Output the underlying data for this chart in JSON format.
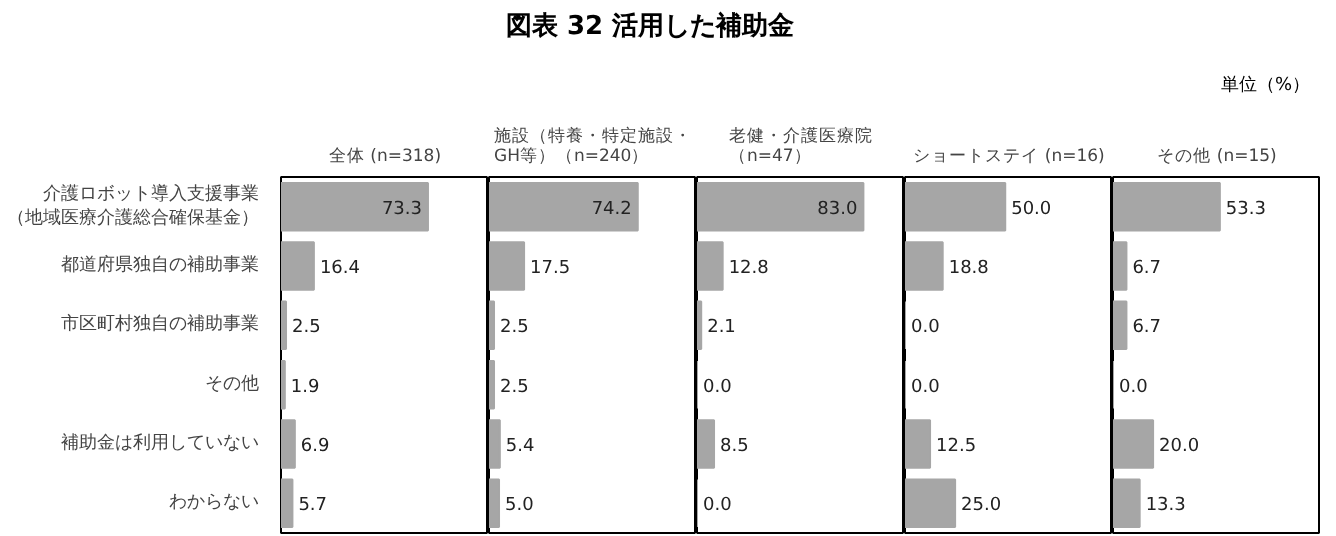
{
  "chart_data": [
    {
      "type": "bar",
      "orientation": "horizontal",
      "title": "全体 (n=318)",
      "annotations": [
        "図表 32 活用した補助金",
        "単位（%）"
      ],
      "categories": [
        "介護ロボット導入支援事業（地域医療介護総合確保基金）",
        "都道府県独自の補助事業",
        "市区町村独自の補助事業",
        "その他",
        "補助金は利用していない",
        "わからない"
      ],
      "values": [
        73.3,
        16.4,
        2.5,
        1.9,
        6.9,
        5.7
      ],
      "color": "#a6a6a6",
      "data_labels": true,
      "tick_labels": "y"
    },
    {
      "type": "bar",
      "orientation": "horizontal",
      "title": "施設（特養・特定施設・GH等）（n=240）",
      "values": [
        74.2,
        17.5,
        2.5,
        2.5,
        5.4,
        5.0
      ],
      "value_labels": [
        "74.2",
        "17.5",
        "2.5",
        "2.5",
        "5.4",
        "5.0"
      ],
      "color": "#a6a6a6",
      "tick_labels": false
    },
    {
      "type": "bar",
      "orientation": "horizontal",
      "title": "老健・介護医療院（n=47）",
      "values": [
        83.0,
        12.8,
        2.1,
        0.0,
        8.5,
        0.0
      ],
      "value_labels": [
        "83.0",
        "12.8",
        "2.1",
        "0.0",
        "8.5",
        "0.0"
      ],
      "color": "#a6a6a6",
      "tick_labels": false
    },
    {
      "type": "bar",
      "orientation": "horizontal",
      "title": "ショートステイ (n=16)",
      "values": [
        50.0,
        18.8,
        0.0,
        0.0,
        12.5,
        25.0
      ],
      "value_labels": [
        "50.0",
        "18.8",
        "0.0",
        "0.0",
        "12.5",
        "25.0"
      ],
      "color": "#a6a6a6",
      "tick_labels": false
    },
    {
      "type": "bar",
      "orientation": "horizontal",
      "title": "その他 (n=15)",
      "values": [
        53.3,
        6.7,
        6.7,
        0.0,
        20.0,
        13.3
      ],
      "value_labels": [
        "53.3",
        "6.7",
        "6.7",
        "0.0",
        "20.0",
        "13.3"
      ],
      "color": "#a6a6a6",
      "tick_labels": false
    }
  ]
}
